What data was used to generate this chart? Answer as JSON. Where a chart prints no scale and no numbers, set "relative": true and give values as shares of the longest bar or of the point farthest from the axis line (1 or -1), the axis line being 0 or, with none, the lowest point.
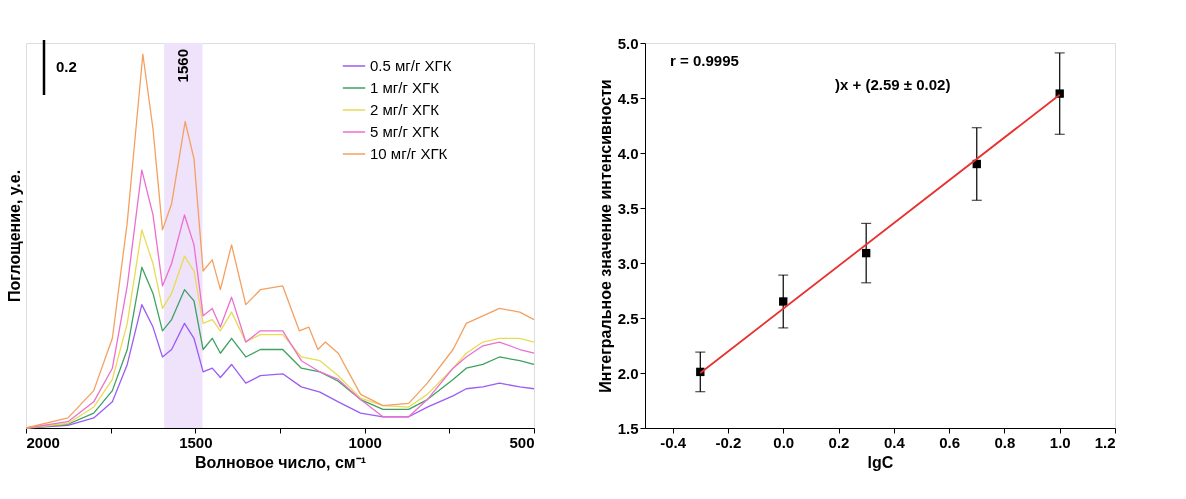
{
  "chart_data": [
    {
      "type": "line",
      "relative": true,
      "xlabel": "Волновое число, см⁻¹",
      "ylabel": "Поглощение, у.е.",
      "xlim": [
        2000,
        500
      ],
      "xticks": [
        2000,
        {
          "value": 1750,
          "label": null
        },
        1500,
        {
          "value": 1250,
          "label": null
        },
        1000,
        {
          "value": 750,
          "label": null
        },
        500
      ],
      "tick_labels": "x",
      "grid": false,
      "legend": "top right",
      "line_style": "solid",
      "marker": "none",
      "annotations": [
        "0.2"
      ],
      "bands": [
        {
          "axis": "x",
          "from": 1592,
          "to": 1479,
          "label": "1560",
          "color": "#efe2fb"
        }
      ],
      "x": [
        2000,
        1876,
        1800,
        1745,
        1701,
        1658,
        1625,
        1597,
        1570,
        1532,
        1504,
        1477,
        1450,
        1426,
        1393,
        1351,
        1308,
        1242,
        1187,
        1132,
        1078,
        1012,
        946,
        870,
        815,
        739,
        700,
        651,
        602,
        542,
        500
      ],
      "series": [
        {
          "name": "0.5 мг/г ХГК",
          "color": "#9b5cf5",
          "values": [
            0,
            0.007,
            0.027,
            0.07,
            0.17,
            0.33,
            0.27,
            0.19,
            0.21,
            0.28,
            0.24,
            0.15,
            0.16,
            0.135,
            0.17,
            0.12,
            0.14,
            0.145,
            0.11,
            0.096,
            0.07,
            0.04,
            0.03,
            0.03,
            0.056,
            0.086,
            0.105,
            0.11,
            0.12,
            0.11,
            0.105
          ]
        },
        {
          "name": "1 мг/г ХГК",
          "color": "#3fa060",
          "values": [
            0,
            0.01,
            0.04,
            0.1,
            0.21,
            0.43,
            0.36,
            0.26,
            0.29,
            0.37,
            0.34,
            0.21,
            0.24,
            0.2,
            0.24,
            0.19,
            0.21,
            0.21,
            0.16,
            0.15,
            0.125,
            0.076,
            0.05,
            0.05,
            0.076,
            0.13,
            0.16,
            0.17,
            0.19,
            0.18,
            0.17
          ]
        },
        {
          "name": "2 мг/г ХГК",
          "color": "#e6dc55",
          "values": [
            0,
            0.012,
            0.056,
            0.13,
            0.28,
            0.53,
            0.44,
            0.32,
            0.36,
            0.46,
            0.42,
            0.28,
            0.29,
            0.26,
            0.31,
            0.23,
            0.25,
            0.25,
            0.19,
            0.18,
            0.14,
            0.08,
            0.06,
            0.056,
            0.09,
            0.16,
            0.2,
            0.23,
            0.24,
            0.24,
            0.23
          ]
        },
        {
          "name": "5 мг/г ХГК",
          "color": "#ec6fd0",
          "values": [
            0,
            0.017,
            0.07,
            0.16,
            0.38,
            0.69,
            0.57,
            0.38,
            0.44,
            0.57,
            0.49,
            0.3,
            0.32,
            0.27,
            0.35,
            0.23,
            0.26,
            0.26,
            0.18,
            0.15,
            0.13,
            0.076,
            0.03,
            0.03,
            0.076,
            0.16,
            0.19,
            0.22,
            0.23,
            0.21,
            0.2
          ]
        },
        {
          "name": "10 мг/г ХГК",
          "color": "#f4a060",
          "x": [
            2000,
            1876,
            1800,
            1745,
            1701,
            1655,
            1625,
            1597,
            1570,
            1530,
            1504,
            1477,
            1450,
            1426,
            1393,
            1351,
            1308,
            1242,
            1193,
            1165,
            1138,
            1116,
            1078,
            1012,
            946,
            870,
            815,
            739,
            700,
            651,
            602,
            542,
            500
          ],
          "values": [
            0,
            0.027,
            0.1,
            0.24,
            0.55,
            1.0,
            0.8,
            0.53,
            0.6,
            0.82,
            0.72,
            0.42,
            0.45,
            0.37,
            0.49,
            0.33,
            0.37,
            0.38,
            0.26,
            0.27,
            0.21,
            0.23,
            0.2,
            0.09,
            0.06,
            0.066,
            0.12,
            0.21,
            0.28,
            0.3,
            0.32,
            0.31,
            0.29
          ]
        }
      ]
    },
    {
      "type": "scatter",
      "xlabel": "lgC",
      "ylabel": "Интегральное значение интенсивности",
      "xlim": [
        -0.5,
        1.2
      ],
      "xticks": [
        -0.4,
        -0.2,
        {
          "value": 0,
          "label": "0.0"
        },
        0.2,
        0.4,
        0.6,
        0.8,
        {
          "value": 1,
          "label": "1.0"
        },
        1.2
      ],
      "ylim": [
        1.5,
        5.0
      ],
      "yticks": [
        1.5,
        {
          "value": 2,
          "label": "2.0"
        },
        2.5,
        {
          "value": 3,
          "label": "3.0"
        },
        3.5,
        {
          "value": 4,
          "label": "4.0"
        },
        4.5,
        {
          "value": 5,
          "label": "5.0"
        }
      ],
      "grid": false,
      "annotations": [
        "r = 0.9995",
        ")x + (2.59 ± 0.02)"
      ],
      "x": [
        -0.3,
        0,
        0.3,
        0.7,
        1.0
      ],
      "series": [
        {
          "type": "scatter",
          "color": "#000000",
          "marker": "square",
          "values": [
            2.01,
            2.65,
            3.09,
            3.9,
            4.54
          ],
          "errors": [
            0.18,
            0.24,
            0.27,
            0.33,
            0.37
          ]
        },
        {
          "type": "line",
          "color": "#e8312f",
          "line_style": "solid",
          "x": [
            -0.3,
            1.0
          ],
          "values": [
            2.0,
            4.53
          ]
        }
      ]
    }
  ]
}
